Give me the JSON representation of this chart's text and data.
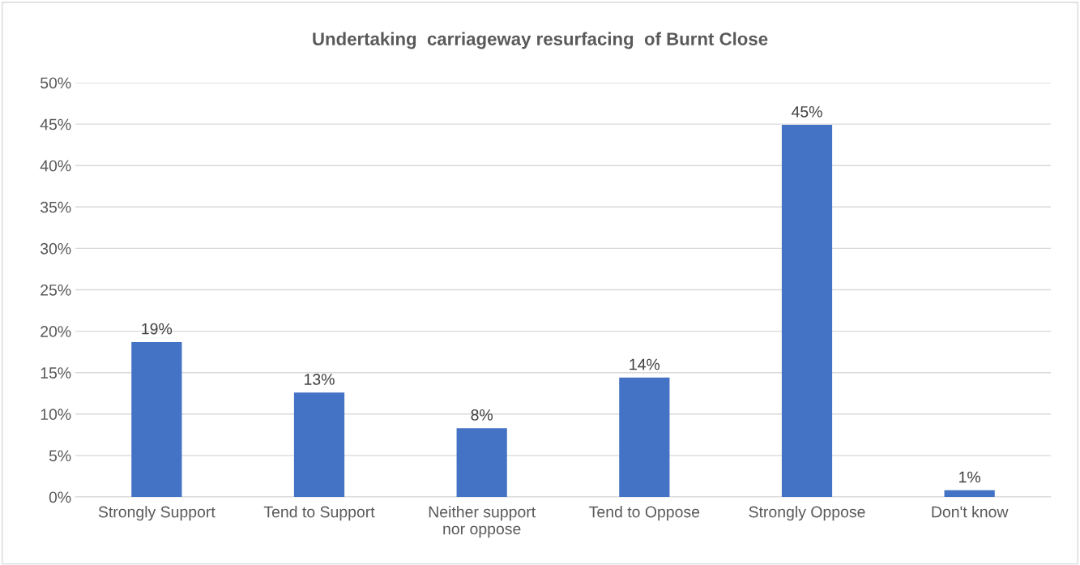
{
  "chart_data": {
    "type": "bar",
    "title": "Undertaking  carriageway resurfacing  of Burnt Close",
    "categories": [
      "Strongly Support",
      "Tend to Support",
      "Neither support\nnor oppose",
      "Tend to Oppose",
      "Strongly Oppose",
      "Don't know"
    ],
    "values": [
      18.7,
      12.6,
      8.3,
      14.4,
      44.9,
      0.8
    ],
    "value_labels": [
      "19%",
      "13%",
      "8%",
      "14%",
      "45%",
      "1%"
    ],
    "color": "#4472c4",
    "ylim": [
      0,
      50
    ],
    "yticks": [
      {
        "value": 0,
        "label": "0%"
      },
      {
        "value": 5,
        "label": "5%"
      },
      {
        "value": 10,
        "label": "10%"
      },
      {
        "value": 15,
        "label": "15%"
      },
      {
        "value": 20,
        "label": "20%"
      },
      {
        "value": 25,
        "label": "25%"
      },
      {
        "value": 30,
        "label": "30%"
      },
      {
        "value": 35,
        "label": "35%"
      },
      {
        "value": 40,
        "label": "40%"
      },
      {
        "value": 45,
        "label": "45%"
      },
      {
        "value": 50,
        "label": "50%"
      }
    ],
    "grid": "y",
    "legend": false
  }
}
